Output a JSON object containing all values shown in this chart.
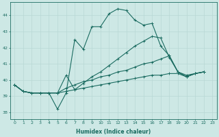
{
  "xlabel": "Humidex (Indice chaleur)",
  "ylabel": "",
  "xlim": [
    -0.5,
    23.5
  ],
  "ylim": [
    37.6,
    44.8
  ],
  "yticks": [
    38,
    39,
    40,
    41,
    42,
    43,
    44
  ],
  "xticks": [
    0,
    1,
    2,
    3,
    4,
    5,
    6,
    7,
    8,
    9,
    10,
    11,
    12,
    13,
    14,
    15,
    16,
    17,
    18,
    19,
    20,
    21,
    22,
    23
  ],
  "bg_color": "#cde8e5",
  "line_color": "#1a6b60",
  "grid_color": "#b8d8d4",
  "lines": [
    [
      39.7,
      39.3,
      39.2,
      39.2,
      39.2,
      38.2,
      39.2,
      42.5,
      41.9,
      43.3,
      43.3,
      44.1,
      44.4,
      44.3,
      43.7,
      43.4,
      43.5,
      42.1,
      41.5,
      40.5,
      40.3,
      40.4,
      40.5
    ],
    [
      39.7,
      39.3,
      39.2,
      39.2,
      39.2,
      39.2,
      40.3,
      39.4,
      39.8,
      40.2,
      40.5,
      40.9,
      41.3,
      41.7,
      42.1,
      42.4,
      42.7,
      42.6,
      41.4,
      40.5,
      40.2,
      40.4,
      40.5
    ],
    [
      39.7,
      39.3,
      39.2,
      39.2,
      39.2,
      39.2,
      39.5,
      39.7,
      39.9,
      40.0,
      40.2,
      40.3,
      40.5,
      40.6,
      40.8,
      41.0,
      41.1,
      41.3,
      41.5,
      40.5,
      40.2,
      40.4,
      40.5
    ],
    [
      39.7,
      39.3,
      39.2,
      39.2,
      39.2,
      39.2,
      39.3,
      39.4,
      39.5,
      39.6,
      39.7,
      39.8,
      39.9,
      40.0,
      40.1,
      40.2,
      40.3,
      40.3,
      40.4,
      40.4,
      40.2,
      40.4,
      40.5
    ]
  ]
}
